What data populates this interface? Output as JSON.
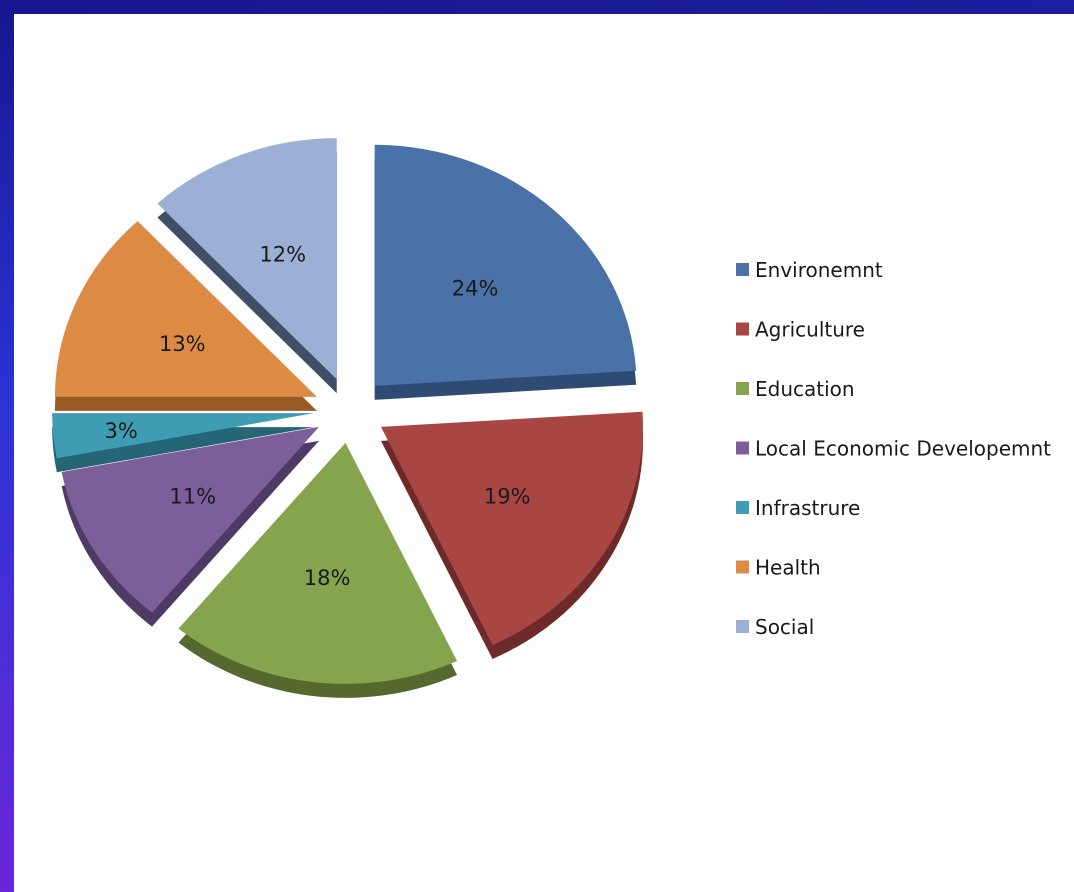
{
  "chart_data": {
    "type": "pie",
    "title": "",
    "exploded": true,
    "style": "3d",
    "slices": [
      {
        "name": "Environemnt",
        "value": 24,
        "label": "24%",
        "color": "#4a72a8",
        "dark": "#2e4b73"
      },
      {
        "name": "Agriculture",
        "value": 19,
        "label": "19%",
        "color": "#a84644",
        "dark": "#6e2a28"
      },
      {
        "name": "Education",
        "value": 18,
        "label": "18%",
        "color": "#86a44e",
        "dark": "#55692f"
      },
      {
        "name": "Local Economic Developemnt",
        "value": 11,
        "label": "11%",
        "color": "#7c5e9a",
        "dark": "#4e3a64"
      },
      {
        "name": "Infrastrure",
        "value": 3,
        "label": "3%",
        "color": "#3f9db3",
        "dark": "#266576"
      },
      {
        "name": "Health",
        "value": 13,
        "label": "13%",
        "color": "#dd8a44",
        "dark": "#9a5a25"
      },
      {
        "name": "Social",
        "value": 12,
        "label": "12%",
        "color": "#9bb0d4",
        "dark": "#3f4f68"
      }
    ],
    "legend_position": "right"
  }
}
